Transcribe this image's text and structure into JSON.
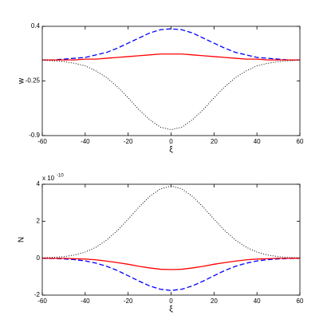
{
  "chart_data": [
    {
      "type": "line",
      "ylabel": "w",
      "xlabel": "ξ",
      "x": [
        -60,
        -55,
        -50,
        -45,
        -40,
        -35,
        -30,
        -25,
        -20,
        -15,
        -10,
        -5,
        0,
        5,
        10,
        15,
        20,
        25,
        30,
        35,
        40,
        45,
        50,
        55,
        60
      ],
      "xlim": [
        -60,
        60
      ],
      "xticks": [
        -60,
        -40,
        -20,
        0,
        20,
        40,
        60
      ],
      "ylim": [
        -0.9,
        0.4
      ],
      "yticks": [
        -0.9,
        -0.25,
        0.4
      ],
      "series": [
        {
          "color": "#0000ff",
          "style": "dashed",
          "values": [
            0,
            0,
            0.01,
            0.02,
            0.03,
            0.06,
            0.09,
            0.14,
            0.2,
            0.26,
            0.32,
            0.36,
            0.37,
            0.36,
            0.32,
            0.26,
            0.2,
            0.14,
            0.09,
            0.06,
            0.03,
            0.02,
            0.01,
            0,
            0
          ]
        },
        {
          "color": "#ff0000",
          "style": "solid",
          "values": [
            0,
            0,
            0,
            0,
            0.01,
            0.01,
            0.02,
            0.03,
            0.04,
            0.05,
            0.06,
            0.07,
            0.07,
            0.07,
            0.06,
            0.05,
            0.04,
            0.03,
            0.02,
            0.01,
            0.01,
            0,
            0,
            0,
            0
          ]
        },
        {
          "color": "#000000",
          "style": "dotted",
          "values": [
            0,
            -0.01,
            -0.02,
            -0.04,
            -0.07,
            -0.13,
            -0.21,
            -0.32,
            -0.45,
            -0.59,
            -0.71,
            -0.8,
            -0.83,
            -0.8,
            -0.71,
            -0.59,
            -0.45,
            -0.32,
            -0.21,
            -0.13,
            -0.07,
            -0.04,
            -0.02,
            -0.01,
            0
          ]
        }
      ]
    },
    {
      "type": "line",
      "ylabel": "N",
      "xlabel": "ξ",
      "y_offset_label": "x 10",
      "y_offset_exponent": "-10",
      "x": [
        -60,
        -55,
        -50,
        -45,
        -40,
        -35,
        -30,
        -25,
        -20,
        -15,
        -10,
        -5,
        0,
        5,
        10,
        15,
        20,
        25,
        30,
        35,
        40,
        45,
        50,
        55,
        60
      ],
      "xlim": [
        -60,
        60
      ],
      "xticks": [
        -60,
        -40,
        -20,
        0,
        20,
        40,
        60
      ],
      "ylim": [
        -2,
        4
      ],
      "yticks": [
        -2,
        0,
        2,
        4
      ],
      "series": [
        {
          "color": "#0000ff",
          "style": "dashed",
          "values": [
            -0.01,
            -0.02,
            -0.04,
            -0.08,
            -0.15,
            -0.27,
            -0.44,
            -0.67,
            -0.95,
            -1.24,
            -1.5,
            -1.68,
            -1.75,
            -1.68,
            -1.5,
            -1.24,
            -0.95,
            -0.67,
            -0.44,
            -0.27,
            -0.15,
            -0.08,
            -0.04,
            -0.02,
            -0.01
          ]
        },
        {
          "color": "#ff0000",
          "style": "solid",
          "values": [
            0,
            -0.01,
            -0.01,
            -0.03,
            -0.05,
            -0.09,
            -0.16,
            -0.24,
            -0.33,
            -0.44,
            -0.53,
            -0.6,
            -0.62,
            -0.6,
            -0.53,
            -0.44,
            -0.33,
            -0.24,
            -0.16,
            -0.09,
            -0.05,
            -0.03,
            -0.01,
            -0.01,
            0
          ]
        },
        {
          "color": "#000000",
          "style": "dotted",
          "values": [
            0.02,
            0.04,
            0.08,
            0.17,
            0.33,
            0.59,
            0.98,
            1.49,
            2.11,
            2.76,
            3.34,
            3.75,
            3.9,
            3.75,
            3.34,
            2.76,
            2.11,
            1.49,
            0.98,
            0.59,
            0.33,
            0.17,
            0.08,
            0.04,
            0.02
          ]
        }
      ]
    }
  ]
}
